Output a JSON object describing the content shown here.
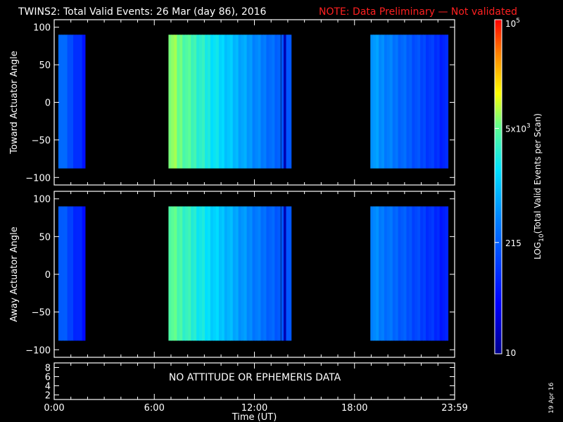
{
  "header": {
    "title": "TWINS2: Total Valid Events: 26 Mar (day  86), 2016",
    "note": "NOTE: Data Preliminary — Not validated",
    "note_color": "#ff2020"
  },
  "footer": {
    "date_stamp": "19 Apr 16"
  },
  "chart_data": [
    {
      "type": "heatmap",
      "ylabel": "Toward Actuator Angle",
      "ylim": [
        -110,
        110
      ],
      "yticks": [
        -100,
        -50,
        0,
        50,
        100
      ],
      "ytick_labels": [
        "−100",
        "−50",
        "0",
        "50",
        "100"
      ],
      "data_y_range": [
        -88,
        90
      ],
      "segments": [
        {
          "x_start": 0.25,
          "x_end": 1.85,
          "level": 0.38
        },
        {
          "x_start": 6.85,
          "x_end": 13.55,
          "level": 0.72
        },
        {
          "x_start": 13.6,
          "x_end": 14.2,
          "level": 0.3
        },
        {
          "x_start": 18.95,
          "x_end": 23.6,
          "level": 0.45
        }
      ]
    },
    {
      "type": "heatmap",
      "ylabel": "Away Actuator Angle",
      "ylim": [
        -110,
        110
      ],
      "yticks": [
        -100,
        -50,
        0,
        50,
        100
      ],
      "ytick_labels": [
        "−100",
        "−50",
        "0",
        "50",
        "100"
      ],
      "data_y_range": [
        -88,
        90
      ],
      "segments": [
        {
          "x_start": 0.25,
          "x_end": 1.85,
          "level": 0.35
        },
        {
          "x_start": 6.85,
          "x_end": 13.55,
          "level": 0.68
        },
        {
          "x_start": 13.6,
          "x_end": 14.2,
          "level": 0.3
        },
        {
          "x_start": 18.95,
          "x_end": 23.6,
          "level": 0.42
        }
      ]
    },
    {
      "type": "line",
      "message": "NO ATTITUDE OR EPHEMERIS DATA",
      "ylim": [
        1,
        9
      ],
      "yticks": [
        2,
        4,
        6,
        8
      ],
      "ytick_labels": [
        "2",
        "4",
        "6",
        "8"
      ],
      "xlabel": "Time (UT)",
      "xlim": [
        0,
        24
      ],
      "xticks": [
        0,
        6,
        12,
        18,
        24
      ],
      "xtick_labels": [
        "0:00",
        "6:00",
        "12:00",
        "18:00",
        "23:59"
      ]
    }
  ],
  "colorbar": {
    "label_parts": [
      "LOG",
      "10",
      "(Total Valid Events per Scan)"
    ],
    "scale": "log",
    "range": [
      10,
      100000
    ],
    "ticks": [
      {
        "value": 10,
        "label": "10"
      },
      {
        "value": 215,
        "label": "215"
      },
      {
        "value": 5000,
        "label_base": "5x10",
        "label_exp": "3"
      },
      {
        "value": 100000,
        "label_base": "10",
        "label_exp": "5"
      }
    ]
  }
}
